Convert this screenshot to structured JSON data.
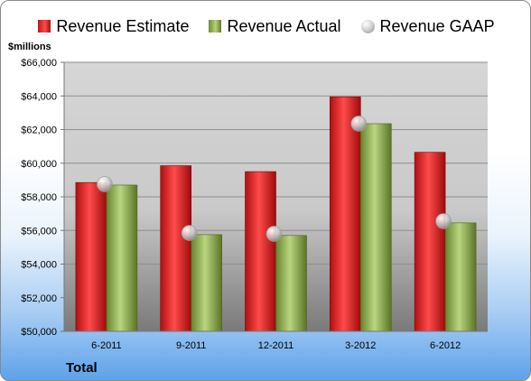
{
  "units_label": "$millions",
  "footer_label": "Total",
  "legend": [
    {
      "label": "Revenue Estimate",
      "marker": "bar-red"
    },
    {
      "label": "Revenue Actual",
      "marker": "bar-green"
    },
    {
      "label": "Revenue GAAP",
      "marker": "dot"
    }
  ],
  "chart_data": {
    "type": "bar",
    "categories": [
      "6-2011",
      "9-2011",
      "12-2011",
      "3-2012",
      "6-2012"
    ],
    "series": [
      {
        "name": "Revenue Estimate",
        "type": "bar",
        "color": "#e0201e",
        "values": [
          58850,
          59850,
          59500,
          63950,
          60650
        ]
      },
      {
        "name": "Revenue Actual",
        "type": "bar",
        "color": "#9bbb59",
        "values": [
          58700,
          55750,
          55700,
          62350,
          56450
        ]
      },
      {
        "name": "Revenue GAAP",
        "type": "scatter",
        "color": "#bfbfbf",
        "values": [
          58750,
          55850,
          55800,
          62350,
          56550
        ]
      }
    ],
    "ylim": [
      50000,
      66000
    ],
    "ytick_step": 2000,
    "ytick_labels": [
      "$50,000",
      "$52,000",
      "$54,000",
      "$56,000",
      "$58,000",
      "$60,000",
      "$62,000",
      "$64,000",
      "$66,000"
    ],
    "grid": true,
    "legend_position": "top"
  }
}
